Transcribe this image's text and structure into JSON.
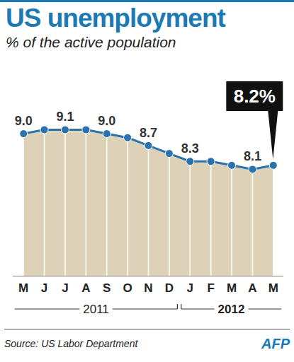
{
  "chart_data": {
    "type": "line",
    "title": "US unemployment",
    "subtitle": "% of the active population",
    "categories": [
      "M",
      "J",
      "J",
      "A",
      "S",
      "O",
      "N",
      "D",
      "J",
      "F",
      "M",
      "A",
      "M"
    ],
    "values": [
      9.0,
      9.1,
      9.1,
      9.1,
      9.0,
      8.9,
      8.7,
      8.5,
      8.3,
      8.3,
      8.2,
      8.1,
      8.2
    ],
    "value_labels": [
      "9.0",
      null,
      "9.1",
      null,
      "9.0",
      null,
      "8.7",
      null,
      "8.3",
      null,
      null,
      "8.1",
      "8.2%"
    ],
    "data_labels": true,
    "color": "#2a72ae",
    "ylim": [
      5.4,
      9.6
    ],
    "tick_labels": "x",
    "annotations": [
      {
        "text": "2011",
        "from": 0,
        "to": 7
      },
      {
        "text": "2012",
        "from": 8,
        "to": 12
      }
    ],
    "source": "Source: US Labor Department",
    "credit": "AFP"
  }
}
